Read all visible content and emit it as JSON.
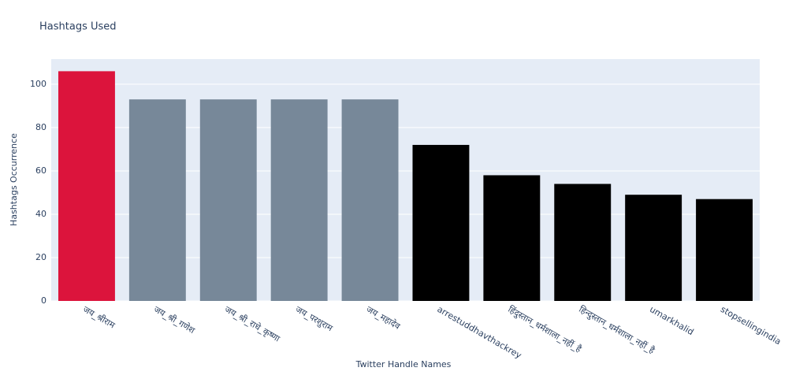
{
  "chart_data": {
    "type": "bar",
    "title": "Hashtags Used",
    "x_label": "Twitter Handle Names",
    "y_label": "Hashtags Occurrence",
    "categories": [
      "जय_श्रीराम",
      "जय_श्री_गणेश",
      "जय_श्री_राधे_कृष्णा",
      "जय_परशुराम",
      "जय_महादेव",
      "arrestuddhavthackrey",
      "हिंदुस्तान_धर्मशाला_नहीं_है",
      "हिन्दुस्तान_धर्मशाला_नहीं_है",
      "umarkhalid",
      "stopsellingindia"
    ],
    "values": [
      106,
      93,
      93,
      93,
      93,
      72,
      58,
      54,
      49,
      47
    ],
    "colors": [
      "#dc143c",
      "#778899",
      "#778899",
      "#778899",
      "#778899",
      "#000000",
      "#000000",
      "#000000",
      "#000000",
      "#000000"
    ],
    "ylim": [
      0,
      111.6
    ],
    "yticks": [
      0,
      20,
      40,
      60,
      80,
      100
    ],
    "grid": true
  }
}
